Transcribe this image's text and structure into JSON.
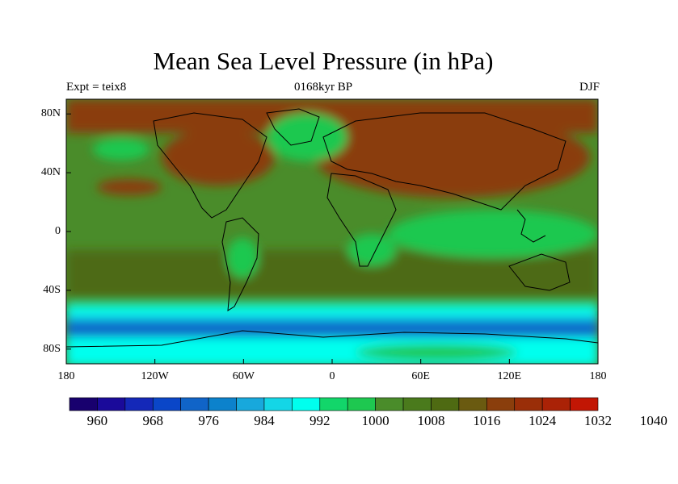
{
  "header": {
    "title": "Mean Sea Level Pressure (in hPa)",
    "left": "Expt = teix8",
    "center": "0168kyr BP",
    "right": "DJF"
  },
  "axes": {
    "y_labels": [
      "80N",
      "40N",
      "0",
      "40S",
      "80S"
    ],
    "y_values": [
      80,
      40,
      0,
      -40,
      -80
    ],
    "x_labels": [
      "180",
      "120W",
      "60W",
      "0",
      "60E",
      "120E",
      "180"
    ],
    "x_values": [
      -180,
      -120,
      -60,
      0,
      60,
      120,
      180
    ],
    "lat_range": [
      -90,
      90
    ],
    "lon_range": [
      -180,
      180
    ]
  },
  "colorbar": {
    "colors": [
      "#18006e",
      "#1a0a9a",
      "#1428b8",
      "#0a46c8",
      "#1064c8",
      "#0c82cc",
      "#18a8dc",
      "#14d6e6",
      "#00ffee",
      "#12d66a",
      "#1ec850",
      "#4a8c2a",
      "#4a7a1c",
      "#4e6a12",
      "#6a5a10",
      "#8a3e0c",
      "#9a2e08",
      "#aa2206",
      "#c21604"
    ],
    "labels": [
      "960",
      "968",
      "976",
      "984",
      "992",
      "1000",
      "1008",
      "1016",
      "1024",
      "1032",
      "1040"
    ]
  },
  "map_colors": {
    "high": "#8a3e0c",
    "mid_high": "#4e6a12",
    "mid": "#4a8c2a",
    "green": "#1ec850",
    "cyan": "#00ffee",
    "light_blue": "#18a8dc",
    "blue": "#0a64c8"
  }
}
